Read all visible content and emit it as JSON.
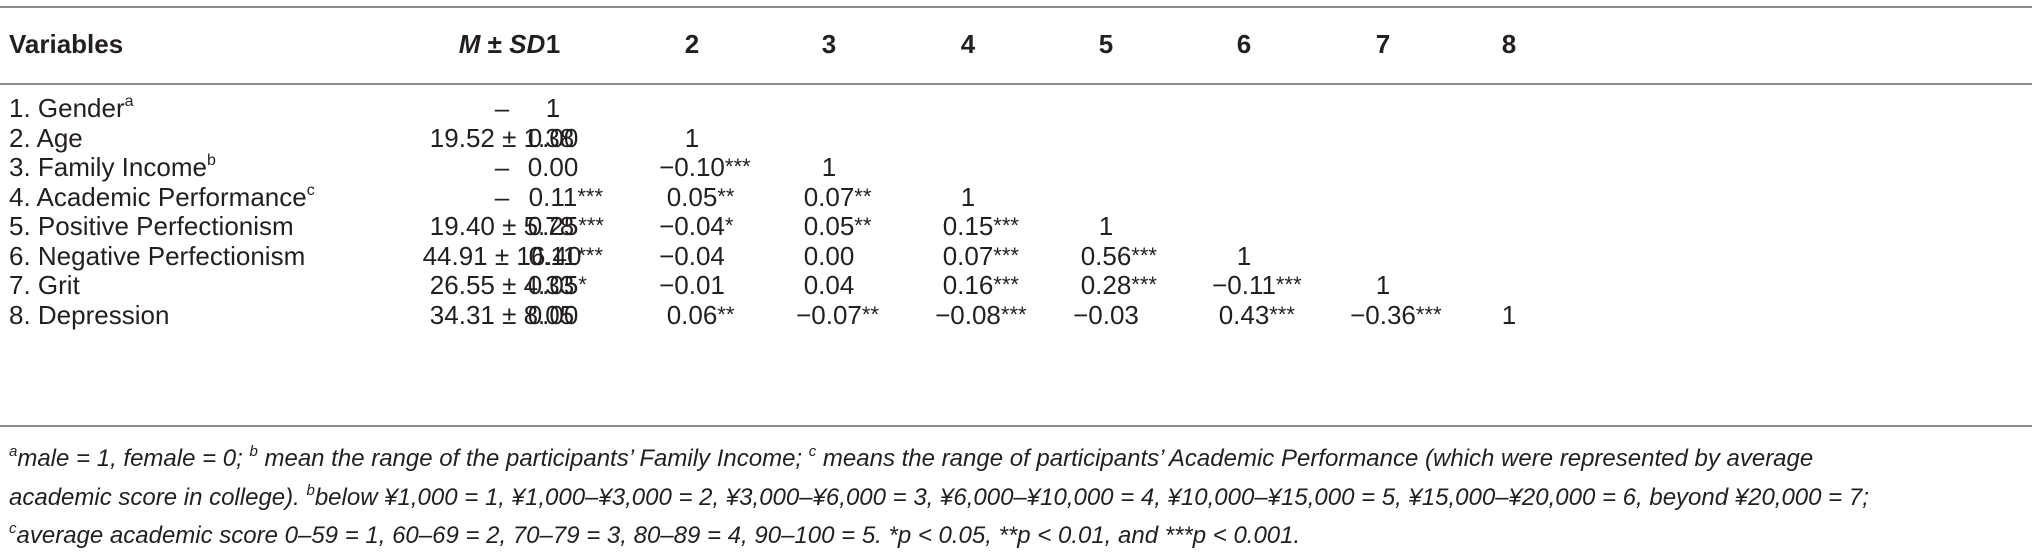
{
  "headers": {
    "variables": "Variables",
    "m": "M",
    "pm": "±",
    "sd": "SD",
    "cols": [
      "1",
      "2",
      "3",
      "4",
      "5",
      "6",
      "7",
      "8"
    ]
  },
  "rows": [
    {
      "label": "1. Gender",
      "sup": "a",
      "msd": "–",
      "vals": [
        "1",
        "",
        "",
        "",
        "",
        "",
        "",
        ""
      ]
    },
    {
      "label": "2. Age",
      "sup": "",
      "msd": "19.52 ± 1.38",
      "vals": [
        "0.00",
        "1",
        "",
        "",
        "",
        "",
        "",
        ""
      ]
    },
    {
      "label": "3. Family Income",
      "sup": "b",
      "msd": "–",
      "vals": [
        "0.00",
        "−0.10***",
        "1",
        "",
        "",
        "",
        "",
        ""
      ]
    },
    {
      "label": "4. Academic Performance",
      "sup": "c",
      "msd": "–",
      "vals": [
        "0.11***",
        "0.05**",
        "0.07**",
        "1",
        "",
        "",
        "",
        ""
      ]
    },
    {
      "label": "5. Positive Perfectionism",
      "sup": "",
      "msd": "19.40 ± 5.78",
      "vals": [
        "0.25***",
        "−0.04*",
        "0.05**",
        "0.15***",
        "1",
        "",
        "",
        ""
      ]
    },
    {
      "label": "6. Negative Perfectionism",
      "sup": "",
      "msd": "44.91 ± 16.40",
      "vals": [
        "0.11***",
        "−0.04",
        "0.00",
        "0.07***",
        "0.56***",
        "1",
        "",
        ""
      ]
    },
    {
      "label": "7. Grit",
      "sup": "",
      "msd": "26.55 ± 4.33",
      "vals": [
        "0.05*",
        "−0.01",
        "0.04",
        "0.16***",
        "0.28***",
        "−0.11***",
        "1",
        ""
      ]
    },
    {
      "label": "8. Depression",
      "sup": "",
      "msd": "34.31 ± 8.05",
      "vals": [
        "0.00",
        "0.06**",
        "−0.07**",
        "−0.08***",
        "−0.03",
        "0.43***",
        "−0.36***",
        "1"
      ]
    }
  ],
  "notes": {
    "line1": [
      {
        "sup": "a",
        "text": "male = 1, female = 0; "
      },
      {
        "sup": "b",
        "text": " mean the range of the participants’ Family Income; "
      },
      {
        "sup": "c",
        "text": " means the range of participants’ Academic Performance (which were represented by average"
      }
    ],
    "line2": [
      {
        "sup": "",
        "text": "academic score in college). "
      },
      {
        "sup": "b",
        "text": "below ¥1,000 = 1, ¥1,000–¥3,000 = 2, ¥3,000–¥6,000 = 3, ¥6,000–¥10,000 = 4, ¥10,000–¥15,000 = 5, ¥15,000–¥20,000 = 6, beyond ¥20,000 = 7;"
      }
    ],
    "line3": [
      {
        "sup": "c",
        "text": "average academic score 0–59 = 1, 60–69 = 2, 70–79 = 3, 80–89 = 4, 90–100 = 5. *p < 0.05, **p < 0.01, and ***p < 0.001."
      }
    ]
  }
}
